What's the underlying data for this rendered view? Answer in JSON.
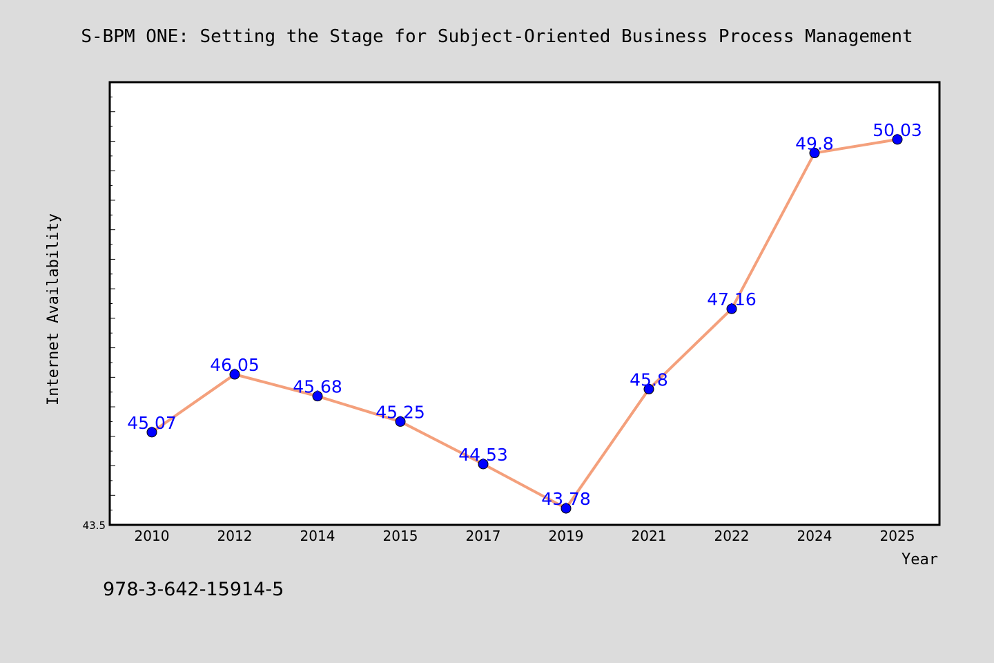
{
  "chart_data": {
    "type": "line",
    "title": "S-BPM ONE: Setting the Stage for Subject-Oriented Business Process Management",
    "xlabel": "Year",
    "ylabel": "Internet Availability",
    "categories": [
      "2010",
      "2012",
      "2014",
      "2015",
      "2017",
      "2019",
      "2021",
      "2022",
      "2024",
      "2025"
    ],
    "series": [
      {
        "values": [
          45.07,
          46.05,
          45.68,
          45.25,
          44.53,
          43.78,
          45.8,
          47.16,
          49.8,
          50.03
        ],
        "data_labels": [
          "45.07",
          "46.05",
          "45.68",
          "45.25",
          "44.53",
          "43.78",
          "45.8",
          "47.16",
          "49.8",
          "50.03"
        ]
      }
    ],
    "ylim": [
      43.5,
      51.0
    ],
    "ytick_label": "43.5",
    "grid": false,
    "line_color": "#f4a07c",
    "marker_color": "#0000ff",
    "label_color": "#0000ff",
    "background_color": "#dcdcdc",
    "plot_background_color": "#ffffff"
  },
  "footer": {
    "isbn": "978-3-642-15914-5"
  }
}
